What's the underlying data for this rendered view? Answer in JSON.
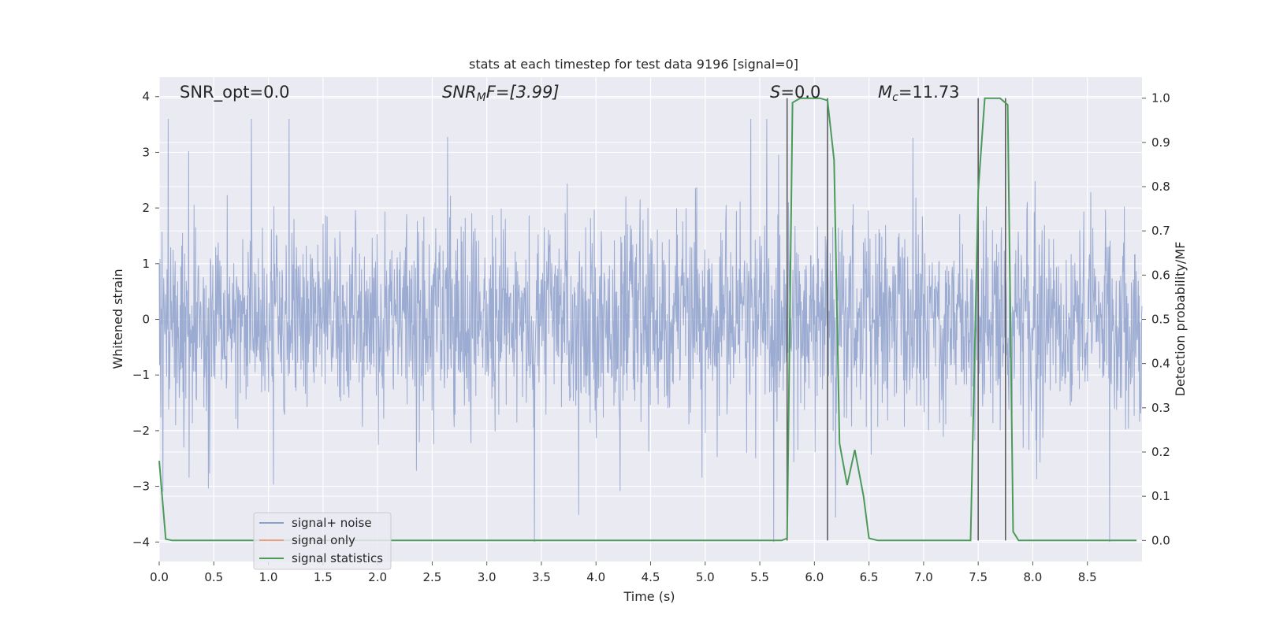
{
  "chart_data": {
    "type": "line",
    "title": "stats at each timestep for test data 9196 [signal=0]",
    "xlabel": "Time (s)",
    "ylabel": "Whitened strain",
    "ylabel_right": "Detection probability/MF",
    "xlim": [
      0.0,
      9.0
    ],
    "ylim": [
      -4.35,
      4.35
    ],
    "ylim_right": [
      -0.0475,
      1.0475
    ],
    "x_ticks": [
      "0.0",
      "0.5",
      "1.0",
      "1.5",
      "2.0",
      "2.5",
      "3.0",
      "3.5",
      "4.0",
      "4.5",
      "5.0",
      "5.5",
      "6.0",
      "6.5",
      "7.0",
      "7.5",
      "8.0",
      "8.5"
    ],
    "y_ticks_left": [
      "4",
      "3",
      "2",
      "1",
      "0",
      "−1",
      "−2",
      "−3",
      "−4"
    ],
    "y_ticks_right": [
      "1.0",
      "0.9",
      "0.8",
      "0.7",
      "0.6",
      "0.5",
      "0.4",
      "0.3",
      "0.2",
      "0.1",
      "0.0"
    ],
    "grid": true,
    "legend_position": "lower-left",
    "annotations": {
      "snr_opt": "SNR_opt=0.0",
      "snr_mf_main": "SNR",
      "snr_mf_sub": "M",
      "snr_mf_rest": "F=[3.99]",
      "s_italic": "S",
      "s_rest": "=0.0",
      "mc_main": "M",
      "mc_sub": "c",
      "mc_rest": "=11.73"
    },
    "series": [
      {
        "name": "signal+ noise",
        "color": "#8da0cb",
        "style": "noise strain trace, roughly symmetric about 0, amplitude mostly within ±1.7 with spikes to about ±3.5"
      },
      {
        "name": "signal only",
        "color": "#e8a07e",
        "values": []
      },
      {
        "name": "signal statistics",
        "color": "#4c9a5a",
        "axis": "right",
        "x": [
          0.0,
          0.06,
          0.12,
          0.5,
          1.0,
          2.0,
          3.0,
          4.0,
          5.0,
          5.5,
          5.7,
          5.75,
          5.8,
          5.87,
          5.95,
          6.05,
          6.12,
          6.18,
          6.23,
          6.3,
          6.37,
          6.45,
          6.5,
          6.58,
          6.7,
          7.0,
          7.3,
          7.43,
          7.5,
          7.56,
          7.6,
          7.7,
          7.77,
          7.82,
          7.87,
          8.0,
          8.5,
          8.95
        ],
        "values": [
          0.18,
          0.003,
          0.0,
          0.0,
          0.0,
          0.0,
          0.0,
          0.0,
          0.0,
          0.0,
          0.0,
          0.005,
          0.99,
          1.0,
          1.0,
          1.0,
          0.995,
          0.86,
          0.22,
          0.125,
          0.205,
          0.1,
          0.005,
          0.0,
          0.0,
          0.0,
          0.0,
          0.0,
          0.79,
          1.0,
          1.0,
          1.0,
          0.985,
          0.02,
          0.0,
          0.0,
          0.0,
          0.0
        ]
      },
      {
        "name": "vertical markers",
        "color": "#555555",
        "x": [
          5.75,
          6.12,
          7.5,
          7.75
        ]
      }
    ]
  }
}
